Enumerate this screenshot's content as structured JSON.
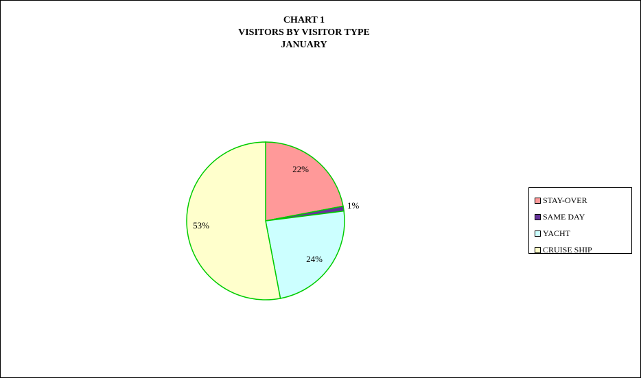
{
  "chart_data": {
    "type": "pie",
    "title_lines": [
      "CHART 1",
      "VISITORS BY VISITOR TYPE",
      "JANUARY"
    ],
    "slices": [
      {
        "name": "STAY-OVER",
        "value": 22,
        "label": "22%",
        "color": "#ff9999"
      },
      {
        "name": "SAME DAY",
        "value": 1,
        "label": "1%",
        "color": "#663399"
      },
      {
        "name": "YACHT",
        "value": 24,
        "label": "24%",
        "color": "#ccffff"
      },
      {
        "name": "CRUISE SHIP",
        "value": 53,
        "label": "53%",
        "color": "#ffffcc"
      }
    ],
    "legend_position": "right",
    "slice_border_color": "#00cc00",
    "start_angle_deg": 0,
    "direction": "clockwise"
  }
}
